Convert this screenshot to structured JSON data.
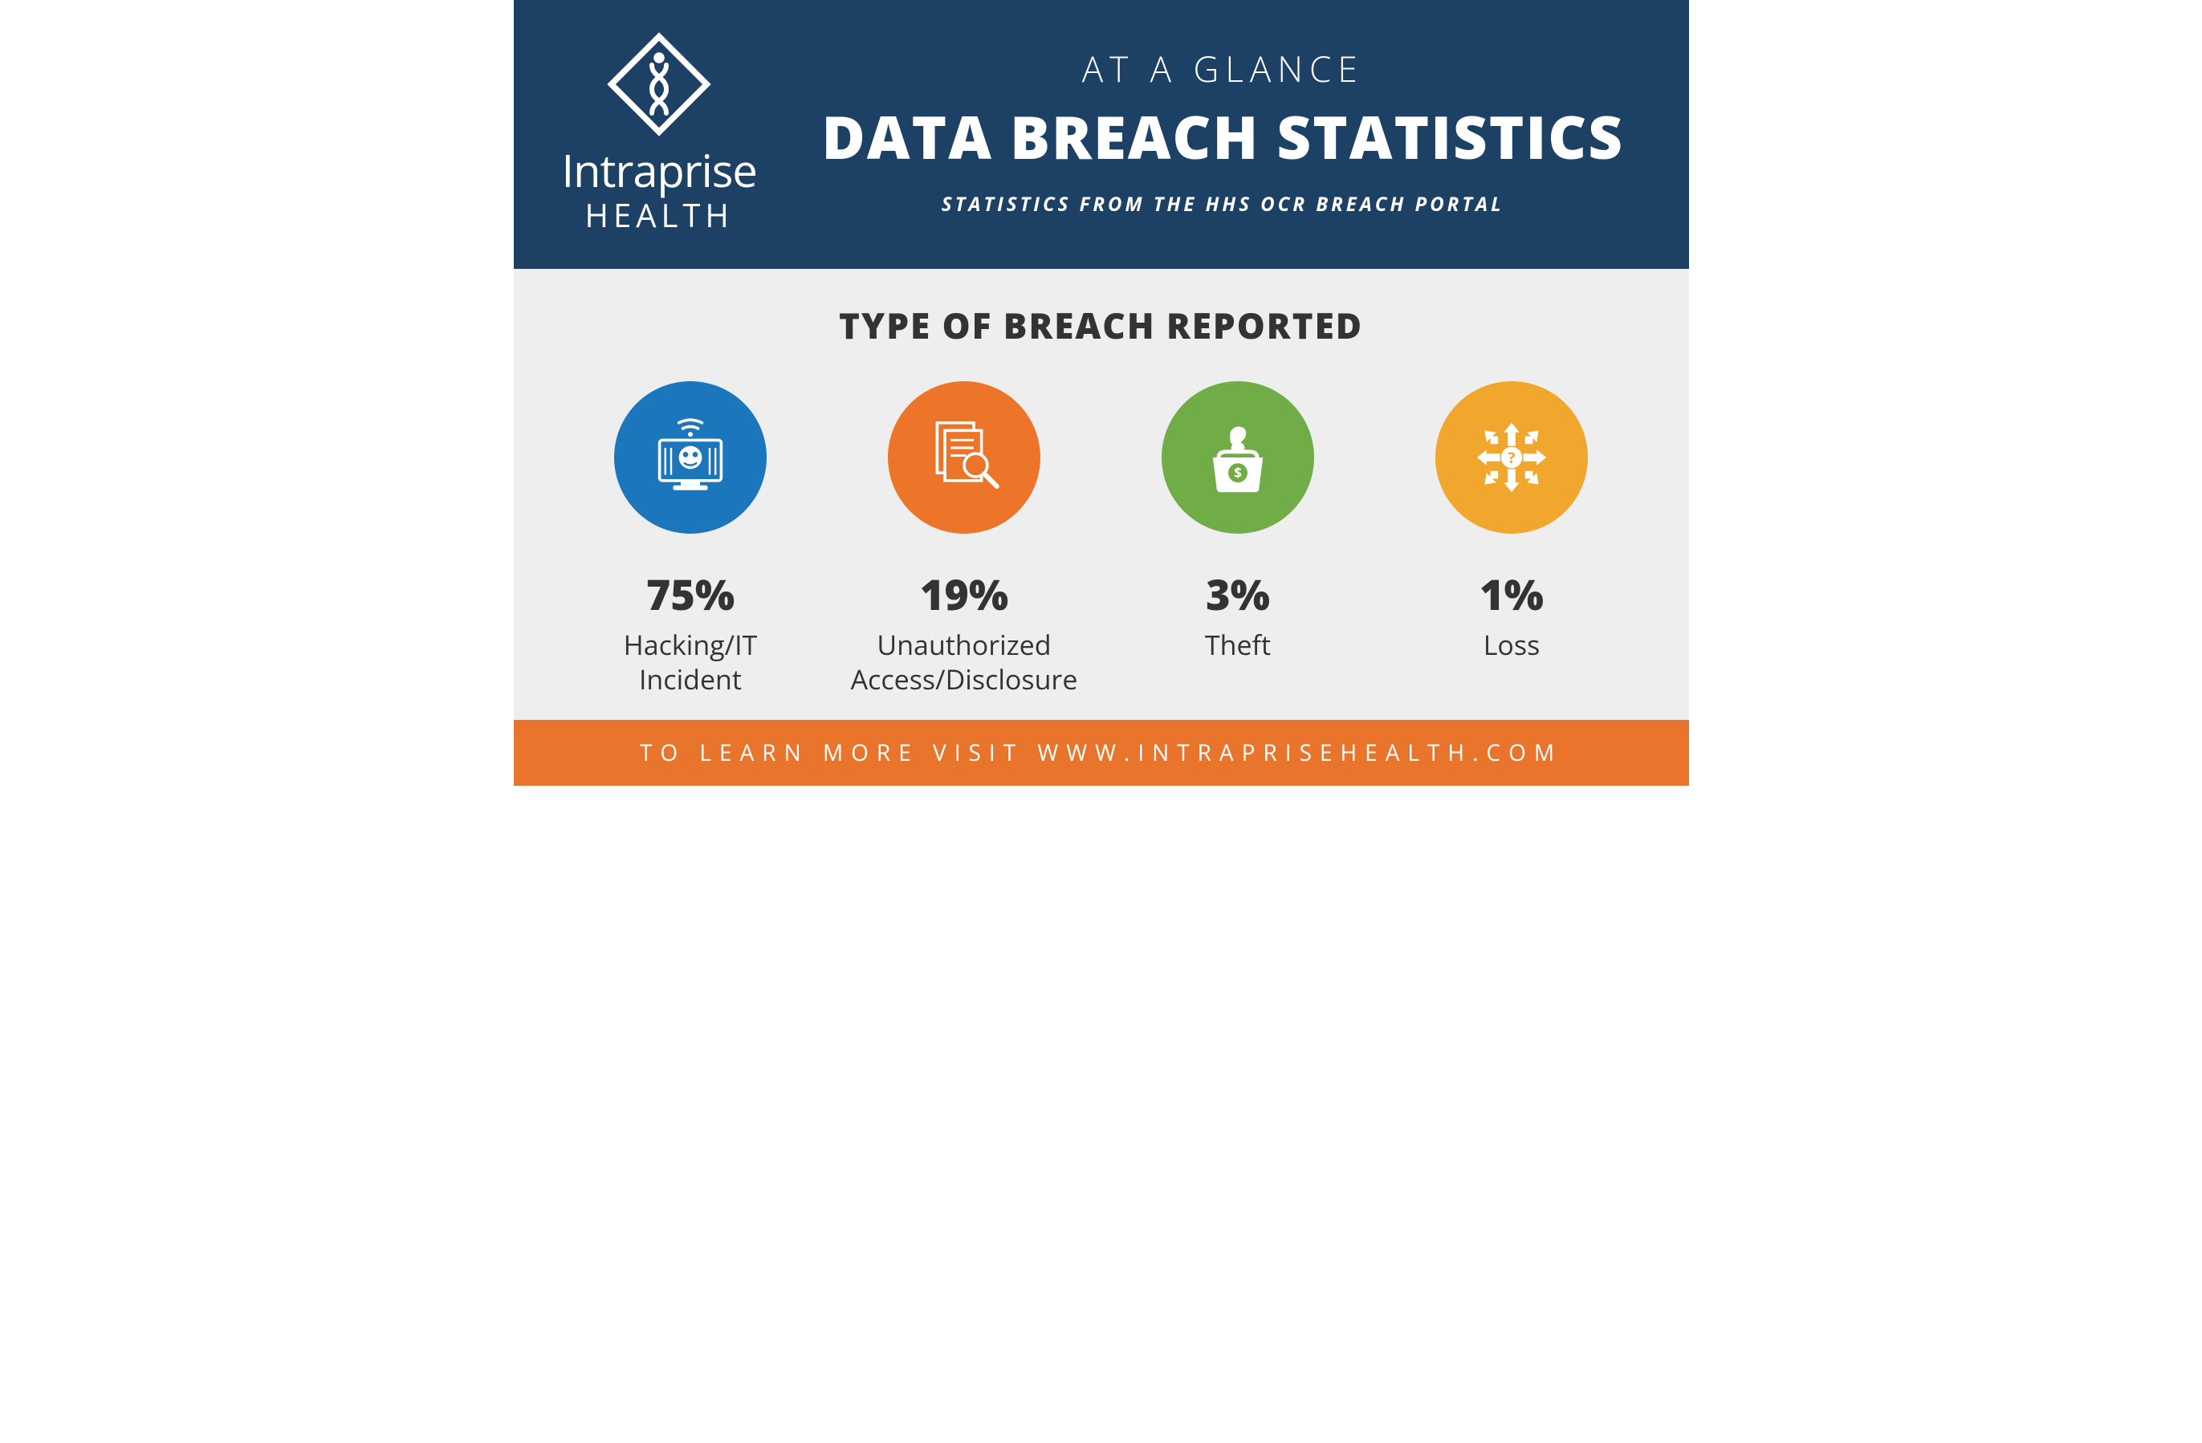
{
  "colors": {
    "header_bg": "#1d4065",
    "body_bg": "#eeeeee",
    "footer_bg": "#e9742b",
    "text_white": "#ffffff",
    "text_dark": "#333333"
  },
  "logo": {
    "name_line1": "Intraprise",
    "name_line2": "HEALTH"
  },
  "header": {
    "eyebrow": "AT A GLANCE",
    "title": "DATA BREACH STATISTICS",
    "subtitle": "STATISTICS FROM THE HHS OCR BREACH PORTAL"
  },
  "section": {
    "title": "TYPE OF BREACH REPORTED"
  },
  "stats": [
    {
      "value": "75%",
      "label": "Hacking/IT Incident",
      "icon": "hacking",
      "circle_color": "#1b76bc"
    },
    {
      "value": "19%",
      "label": "Unauthorized Access/Disclosure",
      "icon": "document-search",
      "circle_color": "#ed752a"
    },
    {
      "value": "3%",
      "label": "Theft",
      "icon": "theft",
      "circle_color": "#70ad47"
    },
    {
      "value": "1%",
      "label": "Loss",
      "icon": "loss-arrows",
      "circle_color": "#f1a62d"
    }
  ],
  "footer": {
    "text": "TO LEARN MORE VISIT WWW.INTRAPRISEHEALTH.COM"
  }
}
